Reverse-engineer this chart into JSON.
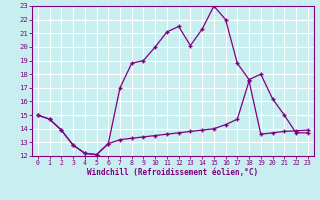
{
  "xlabel": "Windchill (Refroidissement éolien,°C)",
  "background_color": "#c8eef0",
  "grid_color": "#ffffff",
  "line_color": "#800080",
  "xlim": [
    -0.5,
    23.5
  ],
  "ylim": [
    12,
    23
  ],
  "yticks": [
    12,
    13,
    14,
    15,
    16,
    17,
    18,
    19,
    20,
    21,
    22,
    23
  ],
  "xticks": [
    0,
    1,
    2,
    3,
    4,
    5,
    6,
    7,
    8,
    9,
    10,
    11,
    12,
    13,
    14,
    15,
    16,
    17,
    18,
    19,
    20,
    21,
    22,
    23
  ],
  "line1_x": [
    0,
    1,
    2,
    3,
    4,
    5,
    6,
    7,
    8,
    9,
    10,
    11,
    12,
    13,
    14,
    15,
    16,
    17,
    18,
    19,
    20,
    21,
    22,
    23
  ],
  "line1_y": [
    15.0,
    14.7,
    13.9,
    12.8,
    12.2,
    12.1,
    12.9,
    13.2,
    13.3,
    13.4,
    13.5,
    13.6,
    13.7,
    13.8,
    13.9,
    14.0,
    14.3,
    14.7,
    17.5,
    13.6,
    13.7,
    13.8,
    13.85,
    13.9
  ],
  "line2_x": [
    0,
    1,
    2,
    3,
    4,
    5,
    6,
    7,
    8,
    9,
    10,
    11,
    12,
    13,
    14,
    15,
    16,
    17,
    18,
    19,
    20,
    21,
    22,
    23
  ],
  "line2_y": [
    15.0,
    14.7,
    13.9,
    12.8,
    12.2,
    12.1,
    12.9,
    17.0,
    18.8,
    19.0,
    20.0,
    21.1,
    21.5,
    20.1,
    21.3,
    23.0,
    22.0,
    18.8,
    17.6,
    18.0,
    16.2,
    15.0,
    13.7,
    13.7
  ],
  "marker": "+",
  "marker_size": 3,
  "line_width": 0.9,
  "tick_fontsize": 5.2,
  "xlabel_fontsize": 5.5
}
